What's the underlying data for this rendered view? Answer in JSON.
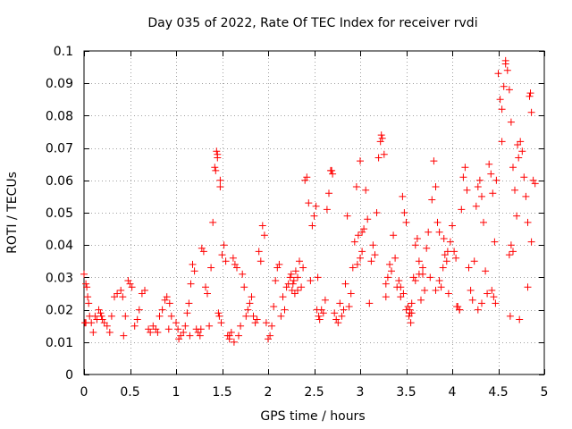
{
  "colors": {
    "points": "#ff0000",
    "axes": "#000000",
    "grid": "#a0a0a0",
    "background": "#ffffff"
  },
  "chart_data": {
    "type": "scatter",
    "title": "Day 035 of 2022, Rate Of TEC Index for receiver rvdi",
    "xlabel": "GPS time / hours",
    "ylabel": "ROTI / TECUs",
    "xlim": [
      0,
      5
    ],
    "ylim": [
      0,
      0.1
    ],
    "xticks": [
      0,
      0.5,
      1,
      1.5,
      2,
      2.5,
      3,
      3.5,
      4,
      4.5,
      5
    ],
    "xtick_labels": [
      "0",
      "0.5",
      "1",
      "1.5",
      "2",
      "2.5",
      "3",
      "3.5",
      "4",
      "4.5",
      "5"
    ],
    "yticks": [
      0,
      0.01,
      0.02,
      0.03,
      0.04,
      0.05,
      0.06,
      0.07,
      0.08,
      0.09,
      0.1
    ],
    "ytick_labels": [
      "0",
      "0.01",
      "0.02",
      "0.03",
      "0.04",
      "0.05",
      "0.06",
      "0.07",
      "0.08",
      "0.09",
      "0.1"
    ],
    "grid": true,
    "marker": "plus",
    "series": [
      {
        "name": "ROTI",
        "points": [
          [
            0.0,
            0.031
          ],
          [
            0.01,
            0.016
          ],
          [
            0.02,
            0.028
          ],
          [
            0.03,
            0.027
          ],
          [
            0.04,
            0.024
          ],
          [
            0.05,
            0.022
          ],
          [
            0.06,
            0.018
          ],
          [
            0.08,
            0.016
          ],
          [
            0.1,
            0.013
          ],
          [
            0.12,
            0.018
          ],
          [
            0.14,
            0.017
          ],
          [
            0.16,
            0.02
          ],
          [
            0.18,
            0.019
          ],
          [
            0.2,
            0.017
          ],
          [
            0.22,
            0.016
          ],
          [
            0.25,
            0.015
          ],
          [
            0.28,
            0.013
          ],
          [
            0.3,
            0.018
          ],
          [
            0.33,
            0.024
          ],
          [
            0.36,
            0.025
          ],
          [
            0.4,
            0.026
          ],
          [
            0.42,
            0.024
          ],
          [
            0.45,
            0.018
          ],
          [
            0.48,
            0.029
          ],
          [
            0.5,
            0.028
          ],
          [
            0.52,
            0.027
          ],
          [
            0.55,
            0.015
          ],
          [
            0.58,
            0.017
          ],
          [
            0.6,
            0.02
          ],
          [
            0.63,
            0.025
          ],
          [
            0.66,
            0.026
          ],
          [
            0.7,
            0.014
          ],
          [
            0.72,
            0.013
          ],
          [
            0.75,
            0.015
          ],
          [
            0.78,
            0.014
          ],
          [
            0.8,
            0.013
          ],
          [
            0.82,
            0.018
          ],
          [
            0.85,
            0.02
          ],
          [
            0.88,
            0.023
          ],
          [
            0.9,
            0.024
          ],
          [
            0.93,
            0.022
          ],
          [
            0.95,
            0.018
          ],
          [
            1.0,
            0.016
          ],
          [
            1.02,
            0.014
          ],
          [
            1.05,
            0.012
          ],
          [
            1.08,
            0.013
          ],
          [
            1.1,
            0.015
          ],
          [
            1.12,
            0.019
          ],
          [
            1.14,
            0.022
          ],
          [
            1.16,
            0.028
          ],
          [
            1.18,
            0.034
          ],
          [
            1.2,
            0.032
          ],
          [
            1.22,
            0.014
          ],
          [
            1.24,
            0.013
          ],
          [
            1.26,
            0.012
          ],
          [
            1.28,
            0.039
          ],
          [
            1.3,
            0.038
          ],
          [
            1.32,
            0.027
          ],
          [
            1.34,
            0.025
          ],
          [
            1.36,
            0.015
          ],
          [
            1.38,
            0.033
          ],
          [
            1.4,
            0.047
          ],
          [
            1.42,
            0.064
          ],
          [
            1.43,
            0.063
          ],
          [
            1.44,
            0.069
          ],
          [
            1.45,
            0.067
          ],
          [
            1.46,
            0.019
          ],
          [
            1.47,
            0.018
          ],
          [
            1.48,
            0.058
          ],
          [
            1.49,
            0.016
          ],
          [
            1.5,
            0.037
          ],
          [
            1.52,
            0.04
          ],
          [
            1.54,
            0.035
          ],
          [
            1.56,
            0.012
          ],
          [
            1.58,
            0.011
          ],
          [
            1.6,
            0.013
          ],
          [
            1.62,
            0.036
          ],
          [
            1.64,
            0.034
          ],
          [
            1.66,
            0.033
          ],
          [
            1.68,
            0.012
          ],
          [
            1.7,
            0.015
          ],
          [
            1.72,
            0.031
          ],
          [
            1.74,
            0.027
          ],
          [
            1.76,
            0.018
          ],
          [
            1.78,
            0.02
          ],
          [
            1.8,
            0.022
          ],
          [
            1.82,
            0.024
          ],
          [
            1.84,
            0.018
          ],
          [
            1.86,
            0.016
          ],
          [
            1.88,
            0.017
          ],
          [
            1.9,
            0.038
          ],
          [
            1.92,
            0.035
          ],
          [
            1.94,
            0.046
          ],
          [
            1.96,
            0.043
          ],
          [
            1.98,
            0.016
          ],
          [
            2.0,
            0.011
          ],
          [
            2.02,
            0.012
          ],
          [
            2.04,
            0.015
          ],
          [
            2.06,
            0.021
          ],
          [
            2.08,
            0.029
          ],
          [
            2.1,
            0.033
          ],
          [
            2.12,
            0.034
          ],
          [
            2.14,
            0.018
          ],
          [
            2.16,
            0.024
          ],
          [
            2.18,
            0.02
          ],
          [
            2.2,
            0.027
          ],
          [
            2.22,
            0.028
          ],
          [
            2.24,
            0.03
          ],
          [
            2.26,
            0.026
          ],
          [
            2.28,
            0.029
          ],
          [
            2.3,
            0.032
          ],
          [
            2.32,
            0.03
          ],
          [
            2.34,
            0.035
          ],
          [
            2.36,
            0.027
          ],
          [
            2.38,
            0.033
          ],
          [
            2.4,
            0.06
          ],
          [
            2.42,
            0.061
          ],
          [
            2.44,
            0.053
          ],
          [
            2.46,
            0.029
          ],
          [
            2.48,
            0.046
          ],
          [
            2.5,
            0.049
          ],
          [
            2.52,
            0.052
          ],
          [
            2.54,
            0.03
          ],
          [
            2.56,
            0.017
          ],
          [
            2.58,
            0.02
          ],
          [
            2.6,
            0.019
          ],
          [
            2.62,
            0.023
          ],
          [
            2.64,
            0.051
          ],
          [
            2.66,
            0.056
          ],
          [
            2.68,
            0.063
          ],
          [
            2.7,
            0.062
          ],
          [
            2.72,
            0.019
          ],
          [
            2.74,
            0.017
          ],
          [
            2.76,
            0.016
          ],
          [
            2.78,
            0.022
          ],
          [
            2.8,
            0.018
          ],
          [
            2.82,
            0.02
          ],
          [
            2.84,
            0.028
          ],
          [
            2.86,
            0.049
          ],
          [
            2.88,
            0.021
          ],
          [
            2.9,
            0.025
          ],
          [
            2.92,
            0.033
          ],
          [
            2.94,
            0.041
          ],
          [
            2.96,
            0.058
          ],
          [
            2.98,
            0.043
          ],
          [
            3.0,
            0.066
          ],
          [
            3.02,
            0.044
          ],
          [
            3.04,
            0.045
          ],
          [
            3.06,
            0.057
          ],
          [
            3.08,
            0.048
          ],
          [
            3.1,
            0.022
          ],
          [
            3.12,
            0.035
          ],
          [
            3.14,
            0.04
          ],
          [
            3.16,
            0.037
          ],
          [
            3.18,
            0.05
          ],
          [
            3.2,
            0.067
          ],
          [
            3.22,
            0.072
          ],
          [
            3.24,
            0.073
          ],
          [
            3.26,
            0.068
          ],
          [
            3.28,
            0.028
          ],
          [
            3.3,
            0.03
          ],
          [
            3.32,
            0.034
          ],
          [
            3.34,
            0.032
          ],
          [
            3.36,
            0.043
          ],
          [
            3.38,
            0.036
          ],
          [
            3.4,
            0.027
          ],
          [
            3.42,
            0.029
          ],
          [
            3.44,
            0.024
          ],
          [
            3.46,
            0.055
          ],
          [
            3.48,
            0.05
          ],
          [
            3.5,
            0.047
          ],
          [
            3.52,
            0.021
          ],
          [
            3.54,
            0.019
          ],
          [
            3.56,
            0.022
          ],
          [
            3.58,
            0.03
          ],
          [
            3.6,
            0.04
          ],
          [
            3.62,
            0.042
          ],
          [
            3.64,
            0.035
          ],
          [
            3.66,
            0.023
          ],
          [
            3.68,
            0.031
          ],
          [
            3.7,
            0.026
          ],
          [
            3.72,
            0.039
          ],
          [
            3.74,
            0.044
          ],
          [
            3.76,
            0.03
          ],
          [
            3.78,
            0.054
          ],
          [
            3.8,
            0.066
          ],
          [
            3.82,
            0.058
          ],
          [
            3.84,
            0.047
          ],
          [
            3.86,
            0.029
          ],
          [
            3.88,
            0.027
          ],
          [
            3.9,
            0.033
          ],
          [
            3.92,
            0.037
          ],
          [
            3.94,
            0.035
          ],
          [
            3.96,
            0.025
          ],
          [
            3.98,
            0.041
          ],
          [
            4.0,
            0.046
          ],
          [
            4.02,
            0.038
          ],
          [
            4.04,
            0.036
          ],
          [
            4.06,
            0.021
          ],
          [
            4.08,
            0.02
          ],
          [
            4.1,
            0.051
          ],
          [
            4.12,
            0.061
          ],
          [
            4.14,
            0.064
          ],
          [
            4.16,
            0.057
          ],
          [
            4.18,
            0.033
          ],
          [
            4.2,
            0.026
          ],
          [
            4.22,
            0.023
          ],
          [
            4.24,
            0.035
          ],
          [
            4.26,
            0.052
          ],
          [
            4.28,
            0.058
          ],
          [
            4.3,
            0.06
          ],
          [
            4.32,
            0.055
          ],
          [
            4.34,
            0.047
          ],
          [
            4.36,
            0.032
          ],
          [
            4.38,
            0.025
          ],
          [
            4.4,
            0.065
          ],
          [
            4.42,
            0.062
          ],
          [
            4.44,
            0.056
          ],
          [
            4.46,
            0.041
          ],
          [
            4.48,
            0.06
          ],
          [
            4.5,
            0.093
          ],
          [
            4.52,
            0.085
          ],
          [
            4.54,
            0.082
          ],
          [
            4.56,
            0.089
          ],
          [
            4.58,
            0.097
          ],
          [
            4.6,
            0.094
          ],
          [
            4.62,
            0.088
          ],
          [
            4.64,
            0.078
          ],
          [
            4.66,
            0.064
          ],
          [
            4.68,
            0.057
          ],
          [
            4.7,
            0.049
          ],
          [
            4.72,
            0.067
          ],
          [
            4.74,
            0.072
          ],
          [
            4.76,
            0.069
          ],
          [
            4.78,
            0.061
          ],
          [
            4.8,
            0.055
          ],
          [
            4.82,
            0.047
          ],
          [
            4.84,
            0.086
          ],
          [
            4.86,
            0.081
          ],
          [
            4.88,
            0.06
          ],
          [
            4.9,
            0.059
          ],
          [
            1.45,
            0.068
          ],
          [
            1.48,
            0.06
          ],
          [
            2.69,
            0.063
          ],
          [
            3.23,
            0.074
          ],
          [
            4.58,
            0.096
          ],
          [
            4.85,
            0.087
          ],
          [
            4.54,
            0.072
          ],
          [
            4.71,
            0.071
          ],
          [
            4.73,
            0.017
          ],
          [
            4.63,
            0.018
          ],
          [
            4.86,
            0.041
          ],
          [
            4.82,
            0.027
          ],
          [
            4.05,
            0.021
          ],
          [
            4.08,
            0.02
          ],
          [
            3.55,
            0.016
          ],
          [
            3.56,
            0.019
          ],
          [
            3.53,
            0.018
          ],
          [
            3.54,
            0.02
          ],
          [
            2.53,
            0.02
          ],
          [
            2.55,
            0.018
          ],
          [
            3.5,
            0.02
          ],
          [
            3.47,
            0.025
          ],
          [
            3.44,
            0.027
          ],
          [
            3.28,
            0.024
          ],
          [
            2.27,
            0.028
          ],
          [
            2.25,
            0.031
          ],
          [
            2.29,
            0.025
          ],
          [
            2.32,
            0.026
          ],
          [
            1.63,
            0.01
          ],
          [
            1.58,
            0.012
          ],
          [
            1.27,
            0.014
          ],
          [
            1.15,
            0.012
          ],
          [
            1.03,
            0.011
          ],
          [
            0.92,
            0.014
          ],
          [
            0.43,
            0.012
          ],
          [
            0.19,
            0.018
          ],
          [
            0.02,
            0.016
          ],
          [
            4.64,
            0.04
          ],
          [
            4.66,
            0.038
          ],
          [
            4.62,
            0.037
          ],
          [
            4.43,
            0.026
          ],
          [
            4.45,
            0.024
          ],
          [
            4.47,
            0.022
          ],
          [
            4.32,
            0.022
          ],
          [
            4.28,
            0.02
          ],
          [
            3.95,
            0.038
          ],
          [
            3.91,
            0.042
          ],
          [
            3.86,
            0.044
          ],
          [
            3.82,
            0.026
          ],
          [
            3.6,
            0.029
          ],
          [
            3.64,
            0.031
          ],
          [
            3.68,
            0.033
          ],
          [
            3.0,
            0.036
          ],
          [
            3.02,
            0.038
          ],
          [
            2.97,
            0.034
          ]
        ]
      }
    ]
  }
}
